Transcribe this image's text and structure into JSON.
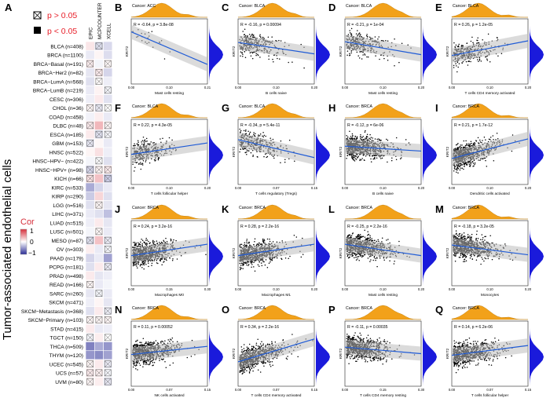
{
  "figure": {
    "heatmap_label": "A",
    "y_axis_title": "Tumor-associated endothelial cells",
    "legend_p": [
      {
        "symbol": "crossed-box",
        "text": "p > 0.05"
      },
      {
        "symbol": "filled-box",
        "text": "p < 0.05"
      }
    ],
    "colorbar": {
      "title": "Cor",
      "ticks": [
        "1",
        "0",
        "−1"
      ]
    },
    "methods": [
      "EPIC",
      "MCPCOUNTER",
      "XCELL"
    ],
    "colors": {
      "positive": "#d6303c",
      "negative": "#2b2d96",
      "density": "#f2a11a",
      "density_right": "#1a1adb",
      "fit": "#1f5bd6",
      "ribbon": "#bdbdbd"
    }
  },
  "chart_data": [
    {
      "type": "heatmap",
      "rows": [
        "BLCA (n=408)",
        "BRCA (n=1100)",
        "BRCA−Basal (n=191)",
        "BRCA−Her2 (n=82)",
        "BRCA−LumA (n=568)",
        "BRCA−LumB (n=219)",
        "CESC (n=306)",
        "CHOL (n=36)",
        "COAD (n=458)",
        "DLBC (n=48)",
        "ESCA (n=185)",
        "GBM (n=153)",
        "HNSC (n=522)",
        "HNSC−HPV− (n=422)",
        "HNSC−HPV+ (n=98)",
        "KICH (n=66)",
        "KIRC (n=533)",
        "KIRP (n=290)",
        "LGG (n=516)",
        "LIHC (n=371)",
        "LUAD (n=515)",
        "LUSC (n=501)",
        "MESO (n=87)",
        "OV (n=303)",
        "PAAD (n=179)",
        "PCPG (n=181)",
        "PRAD (n=498)",
        "READ (n=166)",
        "SARC (n=260)",
        "SKCM (n=471)",
        "SKCM−Metastasis (n=368)",
        "SKCM−Primary (n=103)",
        "STAD (n=415)",
        "TGCT (n=150)",
        "THCA (n=509)",
        "THYM (n=120)",
        "UCEC (n=545)",
        "UCS (n=57)",
        "UVM (n=80)"
      ],
      "columns": [
        "EPIC",
        "MCPCOUNTER",
        "XCELL"
      ],
      "values": [
        [
          0.12,
          -0.15,
          -0.18
        ],
        [
          -0.1,
          0.05,
          -0.16
        ],
        [
          0.08,
          -0.05,
          0.04
        ],
        [
          -0.12,
          0.1,
          -0.2
        ],
        [
          -0.15,
          0.02,
          -0.08
        ],
        [
          -0.1,
          0.06,
          -0.05
        ],
        [
          -0.08,
          0.1,
          -0.14
        ],
        [
          0.05,
          -0.1,
          0.0
        ],
        [
          -0.06,
          0.08,
          -0.1
        ],
        [
          0.1,
          0.35,
          0.05
        ],
        [
          0.1,
          -0.15,
          -0.05
        ],
        [
          -0.12,
          0.04,
          -0.1
        ],
        [
          0.05,
          0.15,
          -0.08
        ],
        [
          -0.05,
          -0.02,
          -0.15
        ],
        [
          -0.2,
          0.06,
          0.1
        ],
        [
          0.15,
          0.3,
          -0.25
        ],
        [
          -0.4,
          -0.2,
          -0.1
        ],
        [
          -0.25,
          0.2,
          -0.15
        ],
        [
          -0.15,
          0.05,
          -0.12
        ],
        [
          -0.1,
          -0.15,
          -0.3
        ],
        [
          -0.08,
          0.1,
          -0.12
        ],
        [
          -0.05,
          0.04,
          -0.1
        ],
        [
          -0.15,
          0.3,
          -0.1
        ],
        [
          0.08,
          -0.1,
          -0.05
        ],
        [
          -0.2,
          -0.1,
          -0.45
        ],
        [
          -0.15,
          0.1,
          -0.1
        ],
        [
          0.1,
          -0.12,
          -0.08
        ],
        [
          0.05,
          -0.1,
          -0.05
        ],
        [
          -0.12,
          -0.05,
          -0.1
        ],
        [
          -0.08,
          0.05,
          -0.12
        ],
        [
          -0.15,
          0.1,
          -0.08
        ],
        [
          0.05,
          0.05,
          0.05
        ],
        [
          0.1,
          -0.1,
          -0.08
        ],
        [
          -0.05,
          0.08,
          0.0
        ],
        [
          -0.6,
          -0.4,
          -0.5
        ],
        [
          -0.5,
          -0.55,
          -0.45
        ],
        [
          0.05,
          0.1,
          -0.1
        ],
        [
          0.1,
          0.08,
          -0.05
        ],
        [
          0.05,
          0.08,
          -0.12
        ]
      ],
      "not_significant": [
        [
          0,
          1,
          0
        ],
        [
          0,
          0,
          0
        ],
        [
          1,
          0,
          1
        ],
        [
          0,
          1,
          0
        ],
        [
          0,
          1,
          0
        ],
        [
          0,
          0,
          1
        ],
        [
          0,
          0,
          0
        ],
        [
          1,
          1,
          1
        ],
        [
          0,
          0,
          0
        ],
        [
          1,
          0,
          1
        ],
        [
          0,
          1,
          1
        ],
        [
          1,
          0,
          0
        ],
        [
          0,
          0,
          0
        ],
        [
          0,
          1,
          0
        ],
        [
          1,
          1,
          1
        ],
        [
          1,
          0,
          1
        ],
        [
          0,
          0,
          0
        ],
        [
          0,
          0,
          0
        ],
        [
          0,
          1,
          0
        ],
        [
          0,
          0,
          0
        ],
        [
          0,
          0,
          0
        ],
        [
          0,
          1,
          0
        ],
        [
          1,
          0,
          1
        ],
        [
          0,
          0,
          1
        ],
        [
          0,
          0,
          0
        ],
        [
          0,
          0,
          1
        ],
        [
          0,
          0,
          0
        ],
        [
          1,
          0,
          0
        ],
        [
          0,
          1,
          0
        ],
        [
          0,
          0,
          0
        ],
        [
          0,
          0,
          1
        ],
        [
          1,
          1,
          1
        ],
        [
          0,
          0,
          0
        ],
        [
          1,
          0,
          1
        ],
        [
          0,
          0,
          0
        ],
        [
          0,
          0,
          0
        ],
        [
          1,
          0,
          1
        ],
        [
          1,
          1,
          1
        ],
        [
          1,
          0,
          1
        ]
      ]
    },
    {
      "type": "scatter",
      "panel": "B",
      "title": "Cancer: ACC",
      "xlabel": "Mast cells resting",
      "ylabel": "KRIT2",
      "stat": "R = -0.64, p = 3.8e-08",
      "xlim": [
        0,
        0.21
      ],
      "ylim": [
        -1,
        5
      ],
      "slope": -1,
      "n": 22,
      "seed": 1
    },
    {
      "type": "scatter",
      "panel": "C",
      "title": "Cancer: BLCA",
      "xlabel": "B cells naive",
      "ylabel": "KRIT2",
      "stat": "R = -0.16, p = 0.00094",
      "xlim": [
        0,
        0.2
      ],
      "ylim": [
        -1,
        5
      ],
      "slope": -0.35,
      "n": 300,
      "seed": 2
    },
    {
      "type": "scatter",
      "panel": "D",
      "title": "Cancer: BLCA",
      "xlabel": "Mast cells resting",
      "ylabel": "KRIT2",
      "stat": "R = -0.21, p = 1e-04",
      "xlim": [
        0,
        0.2
      ],
      "ylim": [
        -1,
        5
      ],
      "slope": -0.4,
      "n": 300,
      "seed": 3
    },
    {
      "type": "scatter",
      "panel": "E",
      "title": "Cancer: BLCA",
      "xlabel": "T cells CD4 memory activated",
      "ylabel": "KRIT2",
      "stat": "R = 0.26, p = 1.2e-05",
      "xlim": [
        0,
        0.2
      ],
      "ylim": [
        -1,
        5
      ],
      "slope": 0.45,
      "n": 300,
      "seed": 4
    },
    {
      "type": "scatter",
      "panel": "F",
      "title": "Cancer: BLCA",
      "xlabel": "T cells follicular helper",
      "ylabel": "KRIT2",
      "stat": "R = 0.22, p = 4.3e-05",
      "xlim": [
        0,
        0.2
      ],
      "ylim": [
        -1,
        5
      ],
      "slope": 0.35,
      "n": 300,
      "seed": 5
    },
    {
      "type": "scatter",
      "panel": "G",
      "title": "Cancer: BLCA",
      "xlabel": "T cells regulatory (Tregs)",
      "ylabel": "KRIT2",
      "stat": "R = -0.34, p = 5.4e-11",
      "xlim": [
        0,
        0.15
      ],
      "ylim": [
        -1,
        5
      ],
      "slope": -0.55,
      "n": 300,
      "seed": 6
    },
    {
      "type": "scatter",
      "panel": "H",
      "title": "Cancer: BRCA",
      "xlabel": "B cells naive",
      "ylabel": "KRIT2",
      "stat": "R = -0.12, p = 6e-06",
      "xlim": [
        0,
        0.2
      ],
      "ylim": [
        -1,
        5
      ],
      "slope": -0.15,
      "n": 700,
      "seed": 7
    },
    {
      "type": "scatter",
      "panel": "I",
      "title": "Cancer: BRCA",
      "xlabel": "Dendritic cells activated",
      "ylabel": "KRIT2",
      "stat": "R = 0.21, p = 1.7e-12",
      "xlim": [
        0,
        0.2
      ],
      "ylim": [
        -1,
        5
      ],
      "slope": 0.6,
      "n": 700,
      "seed": 8
    },
    {
      "type": "scatter",
      "panel": "J",
      "title": "Cancer: BRCA",
      "xlabel": "Macrophages M0",
      "ylabel": "KRIT2",
      "stat": "R = 0.24, p = 3.2e-16",
      "xlim": [
        0,
        0.3
      ],
      "ylim": [
        -1,
        5
      ],
      "slope": 0.35,
      "n": 700,
      "seed": 9
    },
    {
      "type": "scatter",
      "panel": "K",
      "title": "Cancer: BRCA",
      "xlabel": "Macrophages M1",
      "ylabel": "KRIT2",
      "stat": "R = 0.28, p = 2.2e-16",
      "xlim": [
        0,
        0.2
      ],
      "ylim": [
        -1,
        5
      ],
      "slope": 0.35,
      "n": 700,
      "seed": 10
    },
    {
      "type": "scatter",
      "panel": "L",
      "title": "Cancer: BRCA",
      "xlabel": "Mast cells resting",
      "ylabel": "KRIT2",
      "stat": "R = -0.25, p = 2.2e-16",
      "xlim": [
        0,
        0.2
      ],
      "ylim": [
        -1,
        5
      ],
      "slope": -0.35,
      "n": 700,
      "seed": 11
    },
    {
      "type": "scatter",
      "panel": "M",
      "title": "Cancer: BRCA",
      "xlabel": "Monocytes",
      "ylabel": "KRIT2",
      "stat": "R = -0.18, p = 3.2e-05",
      "xlim": [
        0,
        0.2
      ],
      "ylim": [
        -1,
        5
      ],
      "slope": -0.3,
      "n": 700,
      "seed": 12
    },
    {
      "type": "scatter",
      "panel": "N",
      "title": "Cancer: BRCA",
      "xlabel": "NK cells activated",
      "ylabel": "KRIT2",
      "stat": "R = 0.11, p = 0.00052",
      "xlim": [
        0,
        0.15
      ],
      "ylim": [
        -1,
        5
      ],
      "slope": 0.25,
      "n": 700,
      "seed": 13
    },
    {
      "type": "scatter",
      "panel": "O",
      "title": "Cancer: BRCA",
      "xlabel": "T cells CD4 memory activated",
      "ylabel": "KRIT2",
      "stat": "R = 0.34, p = 2.2e-16",
      "xlim": [
        0,
        0.15
      ],
      "ylim": [
        -1,
        5
      ],
      "slope": 0.7,
      "n": 700,
      "seed": 14
    },
    {
      "type": "scatter",
      "panel": "P",
      "title": "Cancer: BRCA",
      "xlabel": "T cells CD4 memory resting",
      "ylabel": "KRIT2",
      "stat": "R = -0.11, p = 0.00035",
      "xlim": [
        0,
        0.3
      ],
      "ylim": [
        -1,
        5
      ],
      "slope": -0.2,
      "n": 700,
      "seed": 15
    },
    {
      "type": "scatter",
      "panel": "Q",
      "title": "Cancer: BRCA",
      "xlabel": "T cells follicular helper",
      "ylabel": "KRIT2",
      "stat": "R = 0.14, p = 6.2e-06",
      "xlim": [
        0,
        0.15
      ],
      "ylim": [
        -1,
        5
      ],
      "slope": 0.3,
      "n": 700,
      "seed": 16
    }
  ]
}
